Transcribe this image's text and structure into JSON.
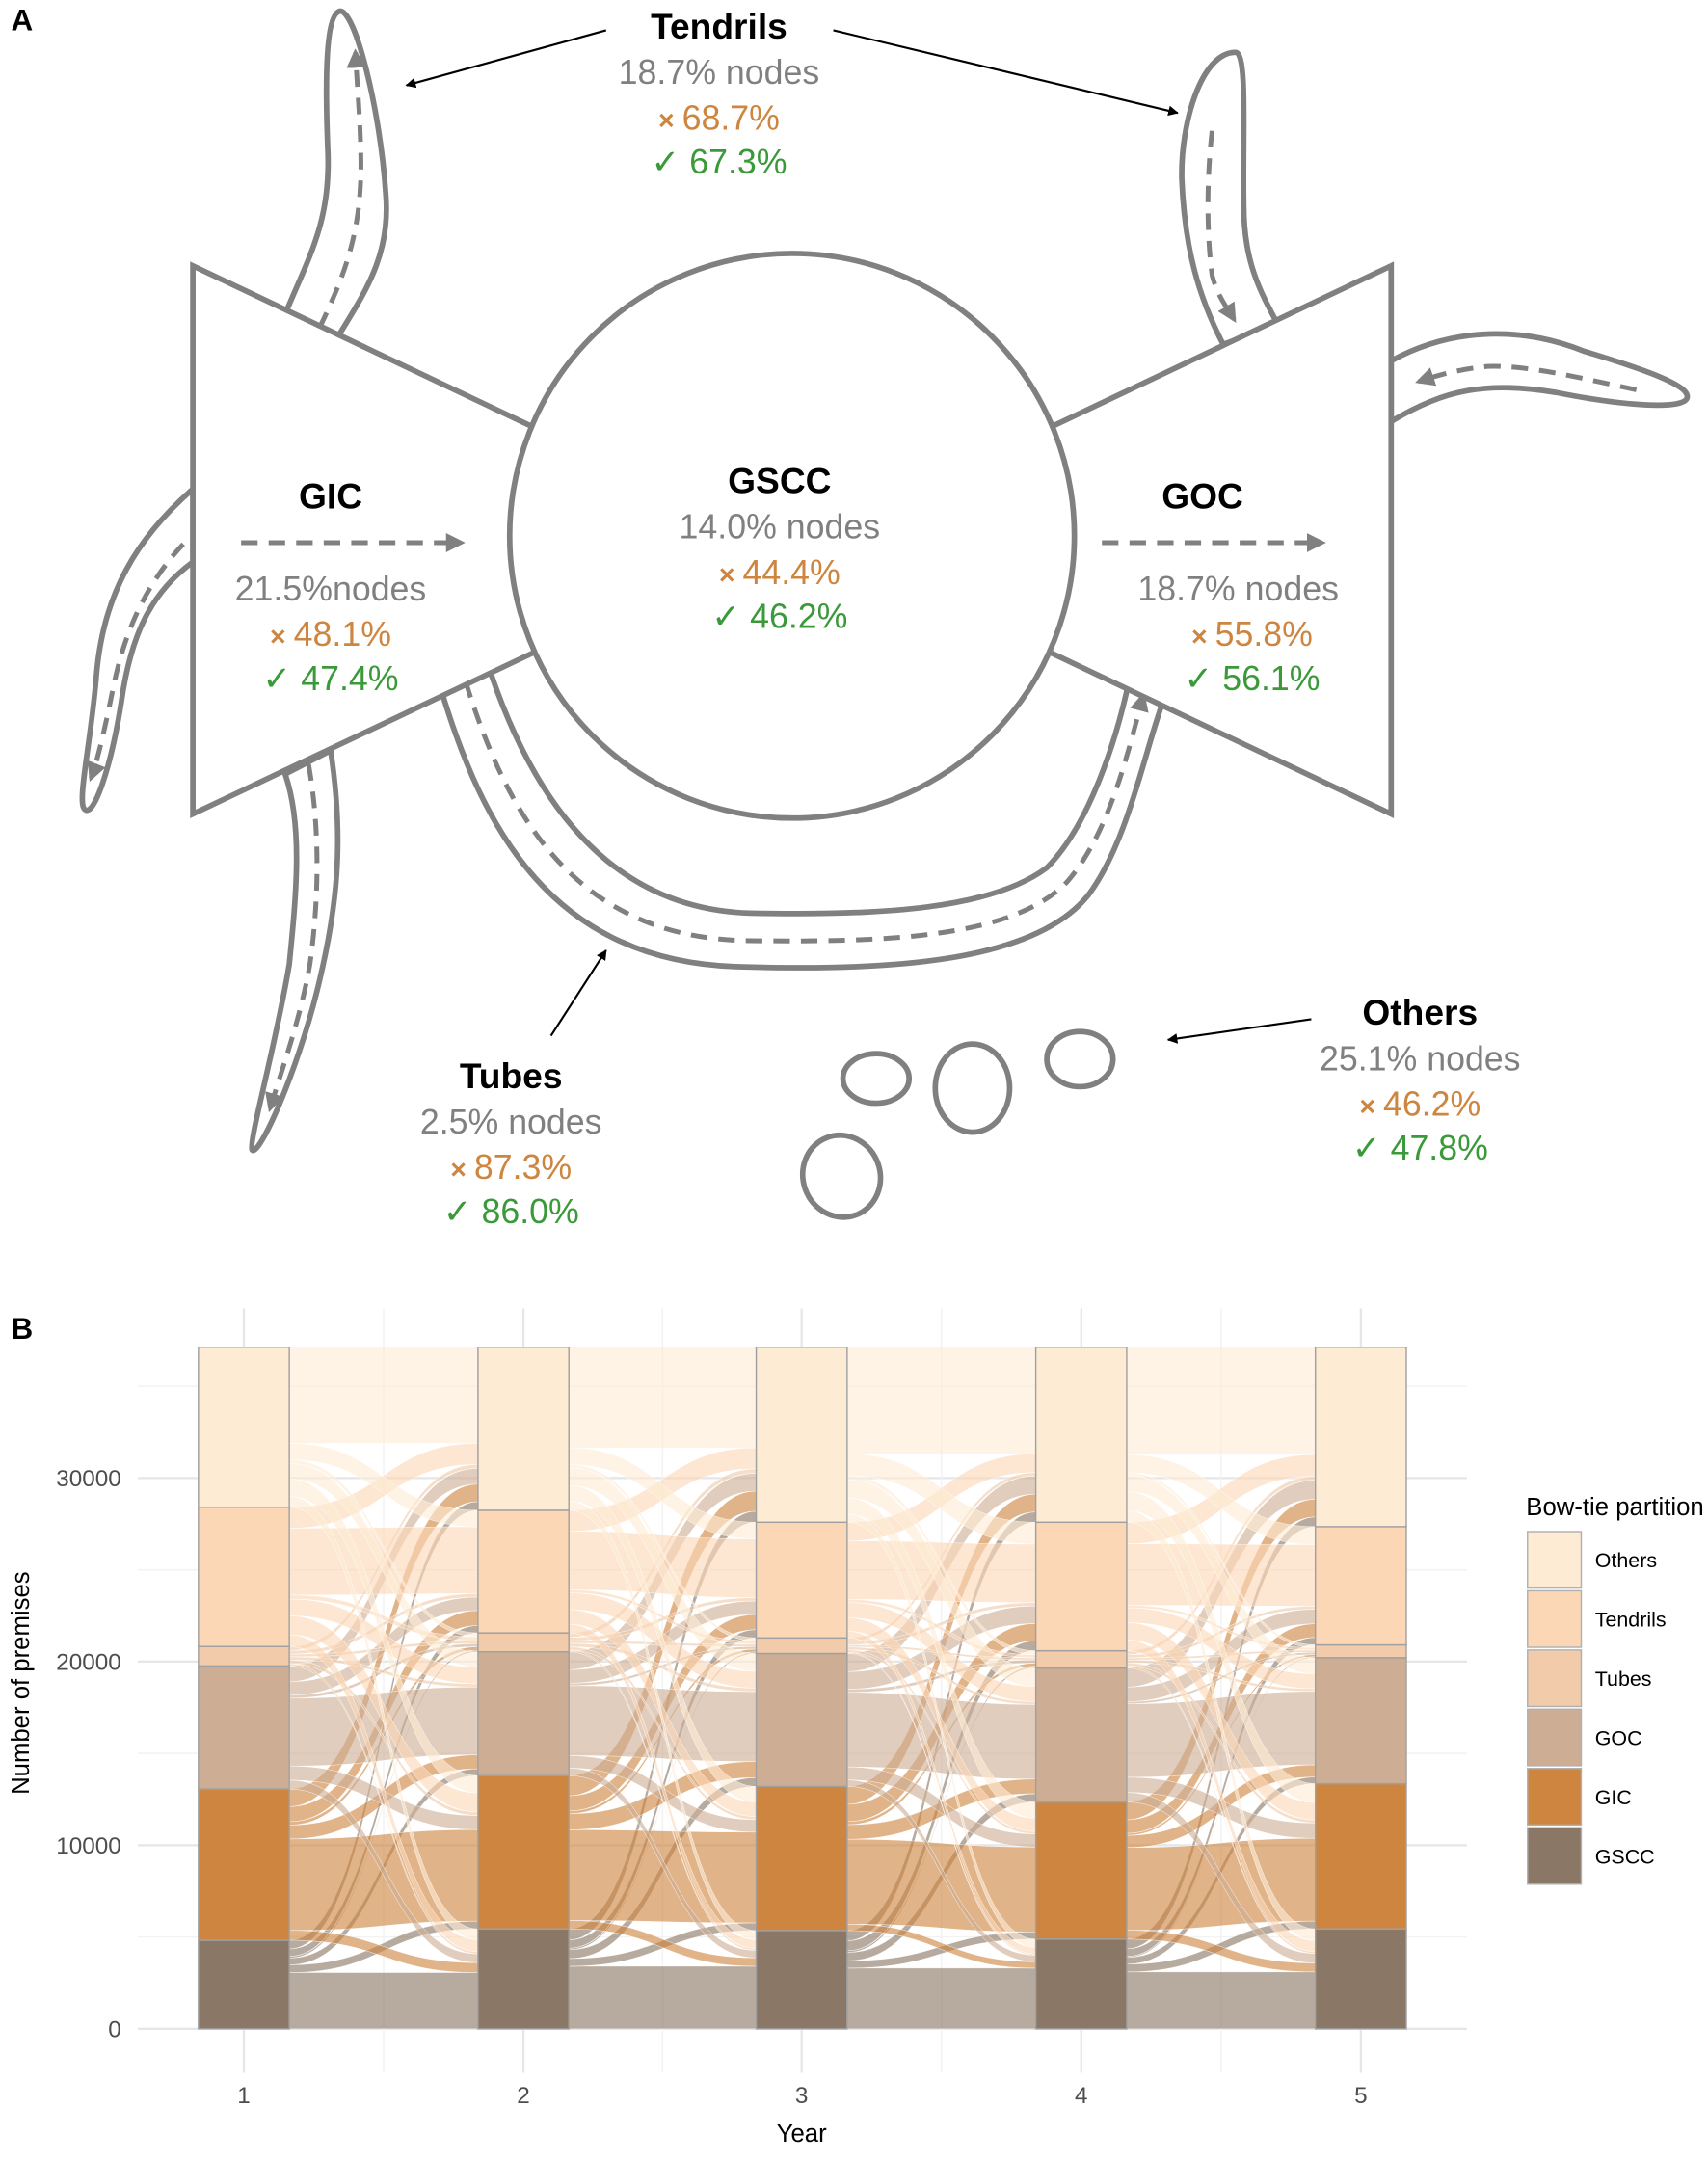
{
  "panel_a": {
    "label": "A",
    "components": {
      "tendrils": {
        "name": "Tendrils",
        "nodes": "18.7% nodes",
        "cross": "68.7%",
        "check": "67.3%"
      },
      "gic": {
        "name": "GIC",
        "nodes": "21.5%nodes",
        "cross": "48.1%",
        "check": "47.4%"
      },
      "gscc": {
        "name": "GSCC",
        "nodes": "14.0% nodes",
        "cross": "44.4%",
        "check": "46.2%"
      },
      "goc": {
        "name": "GOC",
        "nodes": "18.7% nodes",
        "cross": "55.8%",
        "check": "56.1%"
      },
      "tubes": {
        "name": "Tubes",
        "nodes": "2.5% nodes",
        "cross": "87.3%",
        "check": "86.0%"
      },
      "others": {
        "name": "Others",
        "nodes": "25.1% nodes",
        "cross": "46.2%",
        "check": "47.8%"
      }
    },
    "colors": {
      "outline": "#808080",
      "cross": "#cd853f",
      "check": "#3a9a3a"
    }
  },
  "panel_b": {
    "label": "B"
  },
  "chart_data": {
    "type": "alluvial",
    "xlabel": "Year",
    "ylabel": "Number of premises",
    "categories": [
      "1",
      "2",
      "3",
      "4",
      "5"
    ],
    "ylim": [
      0,
      37200
    ],
    "yticks": [
      0,
      10000,
      20000,
      30000
    ],
    "ytick_labels": [
      "0",
      "10000",
      "20000",
      "30000"
    ],
    "grid": true,
    "legend": {
      "title": "Bow-tie partition",
      "placement": "right",
      "entries": [
        "Others",
        "Tendrils",
        "Tubes",
        "GOC",
        "GIC",
        "GSCC"
      ]
    },
    "series": [
      {
        "name": "GSCC",
        "color": "#8b7765",
        "values": [
          4820,
          5440,
          5350,
          4880,
          5440
        ],
        "stay_fraction": 0.58
      },
      {
        "name": "GIC",
        "color": "#cd853f",
        "values": [
          8240,
          8350,
          7850,
          7470,
          7910
        ],
        "stay_fraction": 0.5
      },
      {
        "name": "GOC",
        "color": "#cdae95",
        "values": [
          6700,
          6740,
          7240,
          7300,
          6860
        ],
        "stay_fraction": 0.45
      },
      {
        "name": "Tubes",
        "color": "#f1cbaa",
        "values": [
          1060,
          1030,
          850,
          940,
          700
        ],
        "stay_fraction": 0.1
      },
      {
        "name": "Tendrils",
        "color": "#fbd7b6",
        "values": [
          7590,
          6680,
          6300,
          7000,
          6440
        ],
        "stay_fraction": 0.35
      },
      {
        "name": "Others",
        "color": "#fdebd3",
        "values": [
          8710,
          8880,
          9530,
          9530,
          9770
        ],
        "stay_fraction": 0.48
      }
    ]
  }
}
